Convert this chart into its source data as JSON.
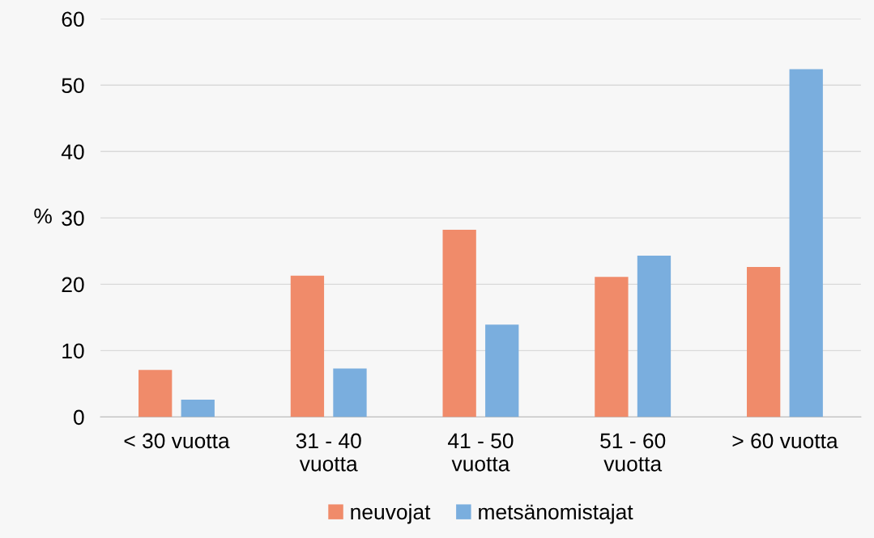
{
  "chart_data": {
    "type": "bar",
    "ylabel": "%",
    "categories": [
      "< 30 vuotta",
      "31 - 40\nvuotta",
      "41 - 50\nvuotta",
      "51 - 60\nvuotta",
      "> 60 vuotta"
    ],
    "series": [
      {
        "name": "neuvojat",
        "color": "#f08b6a",
        "values": [
          7.1,
          21.3,
          28.2,
          21.1,
          22.6
        ]
      },
      {
        "name": "metsänomistajat",
        "color": "#7aaede",
        "values": [
          2.6,
          7.3,
          13.9,
          24.3,
          52.4
        ]
      }
    ],
    "ylim": [
      0,
      60
    ],
    "yticks": [
      0,
      10,
      20,
      30,
      40,
      50,
      60
    ],
    "grid": "y",
    "legend": "bottom"
  }
}
